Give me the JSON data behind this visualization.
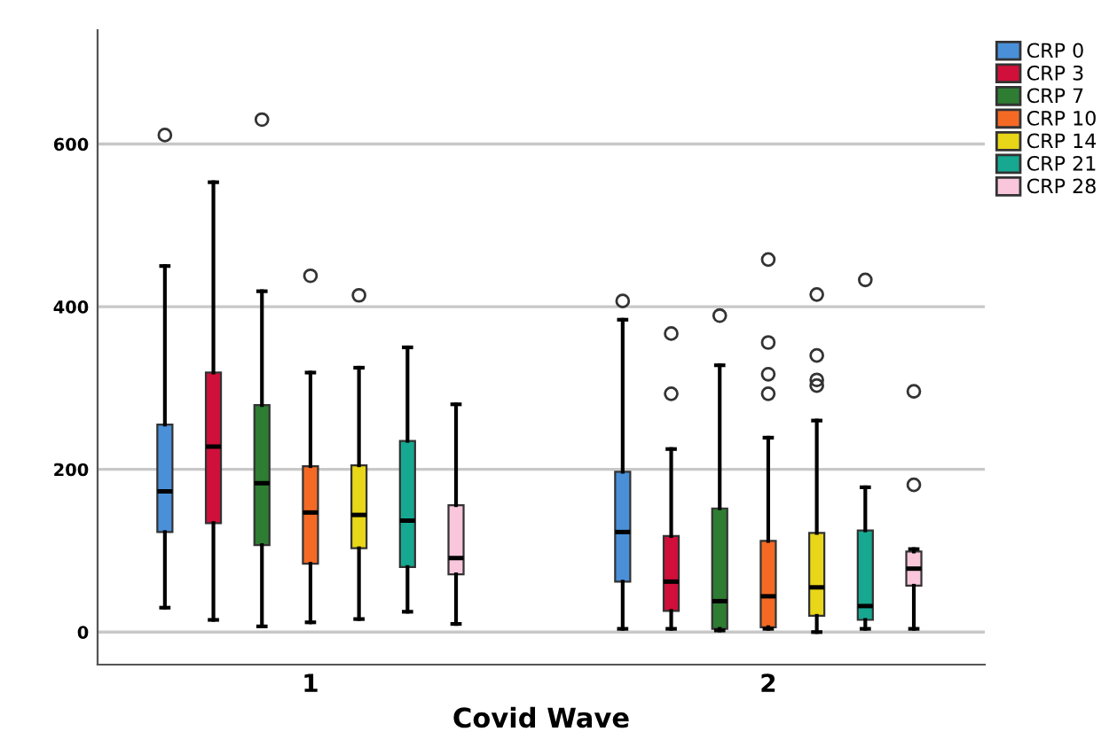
{
  "chart_data": {
    "type": "box",
    "xlabel": "Covid Wave",
    "categories": [
      "1",
      "2"
    ],
    "ylim": [
      -40,
      740
    ],
    "yticks": [
      0,
      200,
      400,
      600
    ],
    "grid": "y",
    "legend": "top right",
    "series": [
      {
        "name": "CRP 0",
        "color": "#4a90d9",
        "boxes": [
          {
            "low": 30,
            "q1": 123,
            "median": 173,
            "q3": 255,
            "high": 450,
            "outliers": [
              611
            ]
          },
          {
            "low": 4,
            "q1": 62,
            "median": 123,
            "q3": 197,
            "high": 384,
            "outliers": [
              407
            ]
          }
        ]
      },
      {
        "name": "CRP 3",
        "color": "#d0103a",
        "boxes": [
          {
            "low": 15,
            "q1": 134,
            "median": 228,
            "q3": 319,
            "high": 553
          },
          {
            "low": 4,
            "q1": 26,
            "median": 62,
            "q3": 118,
            "high": 225,
            "outliers": [
              293,
              367
            ]
          }
        ]
      },
      {
        "name": "CRP 7",
        "color": "#2e7d32",
        "boxes": [
          {
            "low": 7,
            "q1": 107,
            "median": 183,
            "q3": 279,
            "high": 419,
            "outliers": [
              630
            ]
          },
          {
            "low": 2,
            "q1": 4,
            "median": 38,
            "q3": 152,
            "high": 328,
            "outliers": [
              389
            ]
          }
        ]
      },
      {
        "name": "CRP 10",
        "color": "#f46a25",
        "boxes": [
          {
            "low": 12,
            "q1": 84,
            "median": 147,
            "q3": 204,
            "high": 319,
            "outliers": [
              438
            ]
          },
          {
            "low": 4,
            "q1": 6,
            "median": 44,
            "q3": 112,
            "high": 239,
            "outliers": [
              293,
              317,
              356,
              458
            ]
          }
        ]
      },
      {
        "name": "CRP 14",
        "color": "#e8d619",
        "boxes": [
          {
            "low": 16,
            "q1": 103,
            "median": 144,
            "q3": 205,
            "high": 325,
            "outliers": [
              414
            ]
          },
          {
            "low": 0,
            "q1": 20,
            "median": 55,
            "q3": 122,
            "high": 260,
            "outliers": [
              303,
              310,
              340,
              415
            ]
          }
        ]
      },
      {
        "name": "CRP 21",
        "color": "#16a891",
        "boxes": [
          {
            "low": 25,
            "q1": 80,
            "median": 137,
            "q3": 235,
            "high": 350
          },
          {
            "low": 4,
            "q1": 15,
            "median": 32,
            "q3": 125,
            "high": 178,
            "outliers": [
              433
            ]
          }
        ]
      },
      {
        "name": "CRP 28",
        "color": "#f9c6dc",
        "boxes": [
          {
            "low": 10,
            "q1": 71,
            "median": 91,
            "q3": 156,
            "high": 280
          },
          {
            "low": 4,
            "q1": 57,
            "median": 78,
            "q3": 99,
            "high": 102,
            "outliers": [
              181,
              296
            ]
          }
        ]
      }
    ]
  }
}
